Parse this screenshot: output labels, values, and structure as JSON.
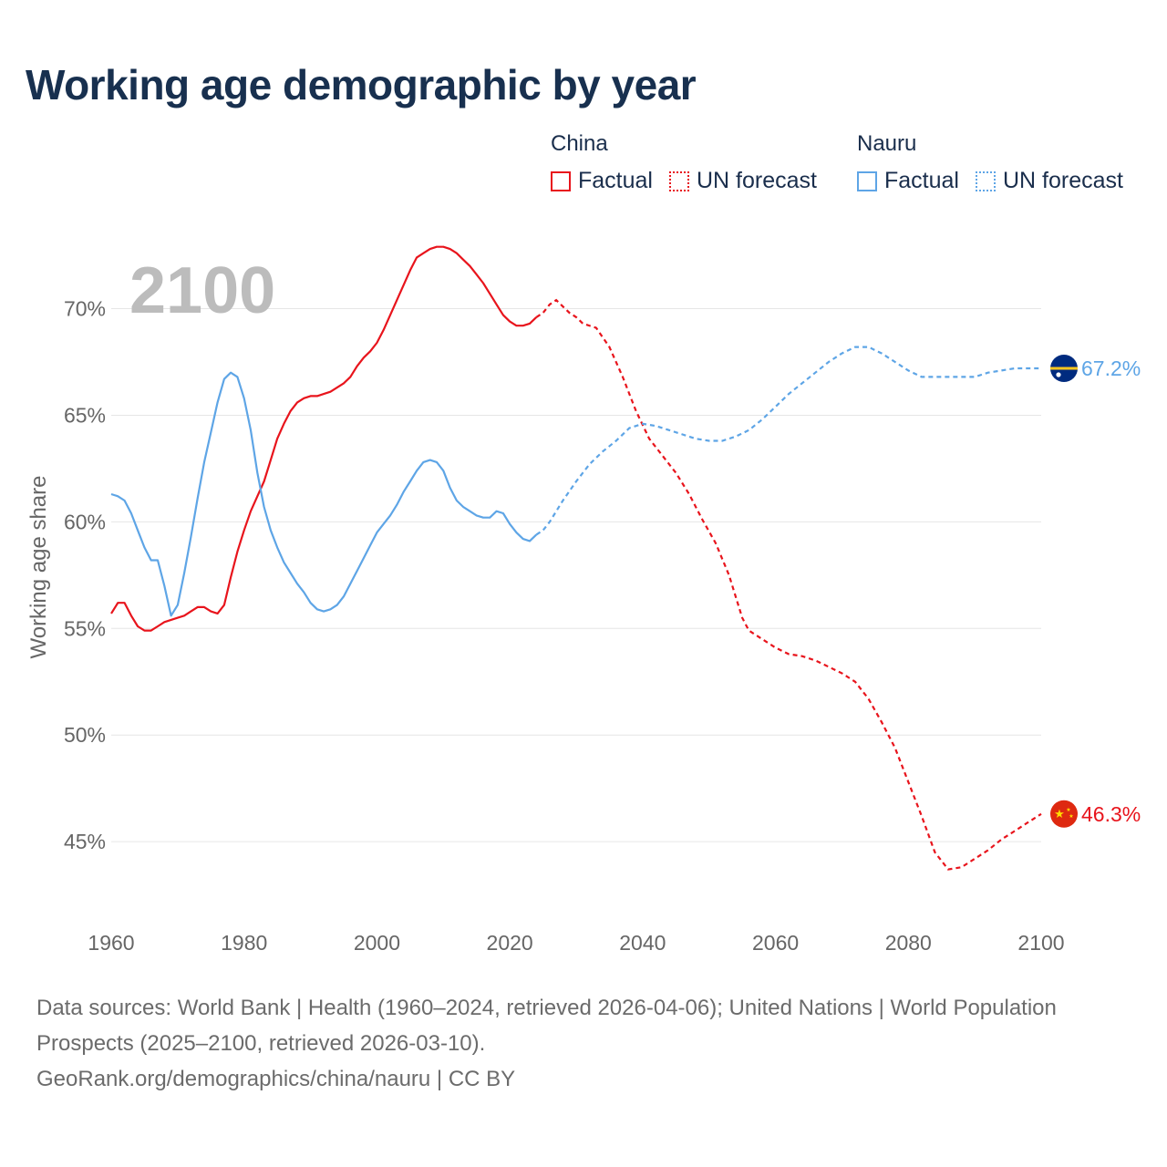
{
  "title": "Working age demographic by year",
  "legend": {
    "groups": [
      {
        "name": "China",
        "factual_label": "Factual",
        "forecast_label": "UN forecast",
        "color": "#e8141c"
      },
      {
        "name": "Nauru",
        "factual_label": "Factual",
        "forecast_label": "UN forecast",
        "color": "#5ea5e6"
      }
    ]
  },
  "footer": {
    "sources": "Data sources: World Bank | Health (1960–2024, retrieved 2026-04-06); United Nations | World Population Prospects (2025–2100, retrieved 2026-03-10).",
    "attribution": "GeoRank.org/demographics/china/nauru | CC BY"
  },
  "chart_data": {
    "type": "line",
    "title": "Working age demographic by year",
    "year_watermark": "2100",
    "ylabel": "Working age share",
    "xlabel": "",
    "xlim": [
      1960,
      2100
    ],
    "ylim": [
      41.5,
      74
    ],
    "xticks": [
      1960,
      1980,
      2000,
      2020,
      2040,
      2060,
      2080,
      2100
    ],
    "yticks": [
      45,
      50,
      55,
      60,
      65,
      70
    ],
    "ytick_suffix": "%",
    "grid": true,
    "factual_end_year": 2024,
    "series": [
      {
        "name": "China",
        "color": "#e8141c",
        "end_label": "46.3%",
        "flag": "china",
        "points": [
          [
            1960,
            55.7
          ],
          [
            1961,
            56.2
          ],
          [
            1962,
            56.2
          ],
          [
            1963,
            55.6
          ],
          [
            1964,
            55.1
          ],
          [
            1965,
            54.9
          ],
          [
            1966,
            54.9
          ],
          [
            1967,
            55.1
          ],
          [
            1968,
            55.3
          ],
          [
            1970,
            55.5
          ],
          [
            1971,
            55.6
          ],
          [
            1972,
            55.8
          ],
          [
            1973,
            56.0
          ],
          [
            1974,
            56.0
          ],
          [
            1975,
            55.8
          ],
          [
            1976,
            55.7
          ],
          [
            1977,
            56.1
          ],
          [
            1978,
            57.4
          ],
          [
            1979,
            58.6
          ],
          [
            1980,
            59.6
          ],
          [
            1981,
            60.5
          ],
          [
            1982,
            61.2
          ],
          [
            1983,
            61.9
          ],
          [
            1984,
            62.9
          ],
          [
            1985,
            63.9
          ],
          [
            1986,
            64.6
          ],
          [
            1987,
            65.2
          ],
          [
            1988,
            65.6
          ],
          [
            1989,
            65.8
          ],
          [
            1990,
            65.9
          ],
          [
            1991,
            65.9
          ],
          [
            1992,
            66.0
          ],
          [
            1993,
            66.1
          ],
          [
            1994,
            66.3
          ],
          [
            1995,
            66.5
          ],
          [
            1996,
            66.8
          ],
          [
            1997,
            67.3
          ],
          [
            1998,
            67.7
          ],
          [
            1999,
            68.0
          ],
          [
            2000,
            68.4
          ],
          [
            2001,
            69.0
          ],
          [
            2002,
            69.7
          ],
          [
            2003,
            70.4
          ],
          [
            2004,
            71.1
          ],
          [
            2005,
            71.8
          ],
          [
            2006,
            72.4
          ],
          [
            2007,
            72.6
          ],
          [
            2008,
            72.8
          ],
          [
            2009,
            72.9
          ],
          [
            2010,
            72.9
          ],
          [
            2011,
            72.8
          ],
          [
            2012,
            72.6
          ],
          [
            2013,
            72.3
          ],
          [
            2014,
            72.0
          ],
          [
            2015,
            71.6
          ],
          [
            2016,
            71.2
          ],
          [
            2017,
            70.7
          ],
          [
            2018,
            70.2
          ],
          [
            2019,
            69.7
          ],
          [
            2020,
            69.4
          ],
          [
            2021,
            69.2
          ],
          [
            2022,
            69.2
          ],
          [
            2023,
            69.3
          ],
          [
            2024,
            69.6
          ],
          [
            2025,
            69.8
          ],
          [
            2026,
            70.2
          ],
          [
            2027,
            70.4
          ],
          [
            2028,
            70.1
          ],
          [
            2029,
            69.8
          ],
          [
            2030,
            69.6
          ],
          [
            2031,
            69.3
          ],
          [
            2033,
            69.1
          ],
          [
            2035,
            68.2
          ],
          [
            2037,
            66.8
          ],
          [
            2039,
            65.2
          ],
          [
            2041,
            63.9
          ],
          [
            2043,
            63.1
          ],
          [
            2045,
            62.3
          ],
          [
            2047,
            61.3
          ],
          [
            2049,
            60.1
          ],
          [
            2051,
            59.0
          ],
          [
            2053,
            57.5
          ],
          [
            2055,
            55.5
          ],
          [
            2056,
            54.9
          ],
          [
            2058,
            54.5
          ],
          [
            2060,
            54.1
          ],
          [
            2062,
            53.8
          ],
          [
            2064,
            53.7
          ],
          [
            2066,
            53.5
          ],
          [
            2068,
            53.2
          ],
          [
            2070,
            52.9
          ],
          [
            2072,
            52.5
          ],
          [
            2074,
            51.7
          ],
          [
            2076,
            50.6
          ],
          [
            2078,
            49.4
          ],
          [
            2080,
            47.8
          ],
          [
            2082,
            46.2
          ],
          [
            2084,
            44.5
          ],
          [
            2086,
            43.7
          ],
          [
            2088,
            43.8
          ],
          [
            2090,
            44.2
          ],
          [
            2092,
            44.6
          ],
          [
            2094,
            45.1
          ],
          [
            2096,
            45.5
          ],
          [
            2098,
            45.9
          ],
          [
            2100,
            46.3
          ]
        ]
      },
      {
        "name": "Nauru",
        "color": "#5ea5e6",
        "end_label": "67.2%",
        "flag": "nauru",
        "points": [
          [
            1960,
            61.3
          ],
          [
            1961,
            61.2
          ],
          [
            1962,
            61.0
          ],
          [
            1963,
            60.4
          ],
          [
            1964,
            59.6
          ],
          [
            1965,
            58.8
          ],
          [
            1966,
            58.2
          ],
          [
            1967,
            58.2
          ],
          [
            1968,
            57.0
          ],
          [
            1969,
            55.6
          ],
          [
            1970,
            56.1
          ],
          [
            1971,
            57.6
          ],
          [
            1972,
            59.3
          ],
          [
            1973,
            61.1
          ],
          [
            1974,
            62.8
          ],
          [
            1975,
            64.2
          ],
          [
            1976,
            65.6
          ],
          [
            1977,
            66.7
          ],
          [
            1978,
            67.0
          ],
          [
            1979,
            66.8
          ],
          [
            1980,
            65.8
          ],
          [
            1981,
            64.3
          ],
          [
            1982,
            62.3
          ],
          [
            1983,
            60.7
          ],
          [
            1984,
            59.6
          ],
          [
            1985,
            58.8
          ],
          [
            1986,
            58.1
          ],
          [
            1987,
            57.6
          ],
          [
            1988,
            57.1
          ],
          [
            1989,
            56.7
          ],
          [
            1990,
            56.2
          ],
          [
            1991,
            55.9
          ],
          [
            1992,
            55.8
          ],
          [
            1993,
            55.9
          ],
          [
            1994,
            56.1
          ],
          [
            1995,
            56.5
          ],
          [
            1996,
            57.1
          ],
          [
            1997,
            57.7
          ],
          [
            1998,
            58.3
          ],
          [
            1999,
            58.9
          ],
          [
            2000,
            59.5
          ],
          [
            2001,
            59.9
          ],
          [
            2002,
            60.3
          ],
          [
            2003,
            60.8
          ],
          [
            2004,
            61.4
          ],
          [
            2005,
            61.9
          ],
          [
            2006,
            62.4
          ],
          [
            2007,
            62.8
          ],
          [
            2008,
            62.9
          ],
          [
            2009,
            62.8
          ],
          [
            2010,
            62.4
          ],
          [
            2011,
            61.6
          ],
          [
            2012,
            61.0
          ],
          [
            2013,
            60.7
          ],
          [
            2014,
            60.5
          ],
          [
            2015,
            60.3
          ],
          [
            2016,
            60.2
          ],
          [
            2017,
            60.2
          ],
          [
            2018,
            60.5
          ],
          [
            2019,
            60.4
          ],
          [
            2020,
            59.9
          ],
          [
            2021,
            59.5
          ],
          [
            2022,
            59.2
          ],
          [
            2023,
            59.1
          ],
          [
            2024,
            59.4
          ],
          [
            2025,
            59.6
          ],
          [
            2026,
            60.0
          ],
          [
            2028,
            61.0
          ],
          [
            2030,
            61.9
          ],
          [
            2032,
            62.7
          ],
          [
            2034,
            63.3
          ],
          [
            2036,
            63.8
          ],
          [
            2038,
            64.4
          ],
          [
            2040,
            64.6
          ],
          [
            2042,
            64.5
          ],
          [
            2044,
            64.3
          ],
          [
            2046,
            64.1
          ],
          [
            2048,
            63.9
          ],
          [
            2050,
            63.8
          ],
          [
            2052,
            63.8
          ],
          [
            2054,
            64.0
          ],
          [
            2056,
            64.3
          ],
          [
            2058,
            64.8
          ],
          [
            2060,
            65.4
          ],
          [
            2062,
            66.0
          ],
          [
            2064,
            66.5
          ],
          [
            2066,
            67.0
          ],
          [
            2068,
            67.5
          ],
          [
            2070,
            67.9
          ],
          [
            2072,
            68.2
          ],
          [
            2074,
            68.2
          ],
          [
            2076,
            67.9
          ],
          [
            2078,
            67.5
          ],
          [
            2080,
            67.1
          ],
          [
            2082,
            66.8
          ],
          [
            2084,
            66.8
          ],
          [
            2086,
            66.8
          ],
          [
            2088,
            66.8
          ],
          [
            2090,
            66.8
          ],
          [
            2092,
            67.0
          ],
          [
            2094,
            67.1
          ],
          [
            2096,
            67.2
          ],
          [
            2098,
            67.2
          ],
          [
            2100,
            67.2
          ]
        ]
      }
    ]
  }
}
